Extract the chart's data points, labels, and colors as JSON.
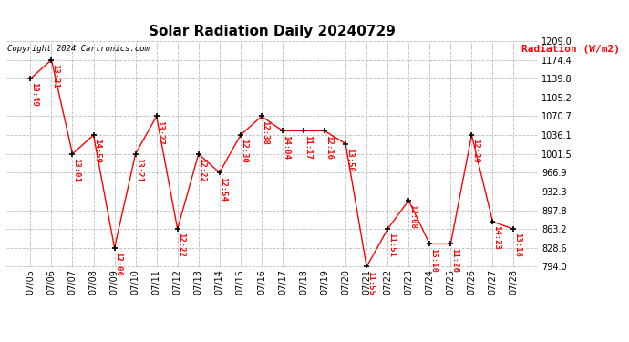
{
  "title": "Solar Radiation Daily 20240729",
  "copyright": "Copyright 2024 Cartronics.com",
  "ylabel": "Radiation (W/m2)",
  "dates": [
    "07/05",
    "07/06",
    "07/07",
    "07/08",
    "07/09",
    "07/10",
    "07/11",
    "07/12",
    "07/13",
    "07/14",
    "07/15",
    "07/16",
    "07/17",
    "07/18",
    "07/19",
    "07/20",
    "07/21",
    "07/22",
    "07/23",
    "07/24",
    "07/25",
    "07/26",
    "07/27",
    "07/28"
  ],
  "values": [
    1139.8,
    1174.4,
    1001.5,
    1036.1,
    828.6,
    1001.5,
    1070.7,
    863.2,
    1001.5,
    966.9,
    1036.1,
    1070.7,
    1044.0,
    1044.0,
    1044.0,
    1020.0,
    794.0,
    863.2,
    916.0,
    836.0,
    836.0,
    1036.1,
    877.0,
    863.2
  ],
  "times": [
    "10:49",
    "13:21",
    "13:01",
    "14:59",
    "12:06",
    "13:21",
    "13:27",
    "12:22",
    "12:22",
    "12:54",
    "12:30",
    "12:38",
    "14:04",
    "11:17",
    "12:16",
    "13:50",
    "11:55",
    "11:51",
    "12:08",
    "15:18",
    "11:26",
    "12:29",
    "14:23",
    "13:18"
  ],
  "line_color": "#ff0000",
  "marker_color": "#000000",
  "grid_color": "#bbbbbb",
  "bg_color": "#ffffff",
  "title_fontsize": 11,
  "time_fontsize": 6.5,
  "tick_fontsize": 7,
  "ylim": [
    794.0,
    1209.0
  ],
  "yticks": [
    794.0,
    828.6,
    863.2,
    897.8,
    932.3,
    966.9,
    1001.5,
    1036.1,
    1070.7,
    1105.2,
    1139.8,
    1174.4,
    1209.0
  ]
}
